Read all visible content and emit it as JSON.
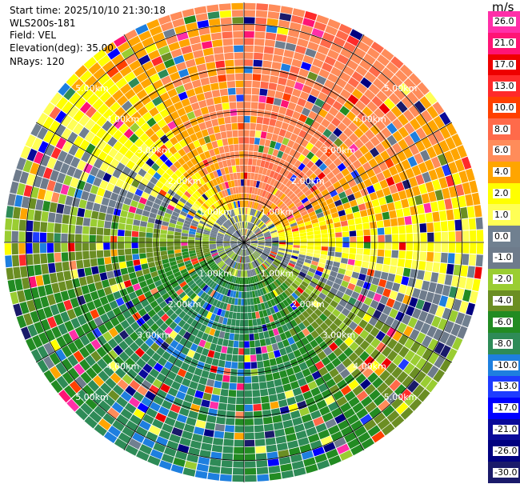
{
  "info": {
    "start_time": "Start time: 2025/10/10 21:30:18",
    "instrument": "WLS200s-181",
    "field": "Field: VEL",
    "elevation": "Elevation(deg): 35.00",
    "nrays": "NRays: 120"
  },
  "colorbar": {
    "unit": "m/s",
    "levels": [
      {
        "label": "26.0",
        "color": "#ff2fa8"
      },
      {
        "label": "21.0",
        "color": "#ff1475"
      },
      {
        "label": "17.0",
        "color": "#ee0000"
      },
      {
        "label": "13.0",
        "color": "#ff2a2a"
      },
      {
        "label": "10.0",
        "color": "#ff4000"
      },
      {
        "label": "8.0",
        "color": "#ff6a4a"
      },
      {
        "label": "6.0",
        "color": "#ff8c5a"
      },
      {
        "label": "4.0",
        "color": "#ffa500"
      },
      {
        "label": "2.0",
        "color": "#ffff00"
      },
      {
        "label": "1.0",
        "color": "#ffff55"
      },
      {
        "label": "0.0",
        "color": "#708090"
      },
      {
        "label": "-1.0",
        "color": "#6e7b8b"
      },
      {
        "label": "-2.0",
        "color": "#9acd32"
      },
      {
        "label": "-4.0",
        "color": "#6b8e23"
      },
      {
        "label": "-6.0",
        "color": "#228b22"
      },
      {
        "label": "-8.0",
        "color": "#2e8b57"
      },
      {
        "label": "-10.0",
        "color": "#1e7fdf"
      },
      {
        "label": "-13.0",
        "color": "#1e3cff"
      },
      {
        "label": "-17.0",
        "color": "#0000ff"
      },
      {
        "label": "-21.0",
        "color": "#0a0a9a"
      },
      {
        "label": "-26.0",
        "color": "#000080"
      },
      {
        "label": "-30.0",
        "color": "#1a1a6a"
      }
    ]
  },
  "chart_data": {
    "type": "heatmap",
    "projection": "polar-ppi",
    "field": "VEL",
    "nrays": 120,
    "elevation_deg": 35.0,
    "max_range_km": 5.5,
    "range_rings_km": [
      1,
      2,
      3,
      4,
      5
    ],
    "ring_labels": [
      "1.00km",
      "2.00km",
      "3.00km",
      "4.00km",
      "5.00km"
    ],
    "spokes_deg": 30,
    "description_values": {
      "upper_half": "positive velocities 2 to 10 m/s (orange, yellow, salmon)",
      "lower_half": "negative velocities -2 to -13 m/s (green, blue)",
      "near_center": "approximately 0 m/s (gray)"
    }
  }
}
